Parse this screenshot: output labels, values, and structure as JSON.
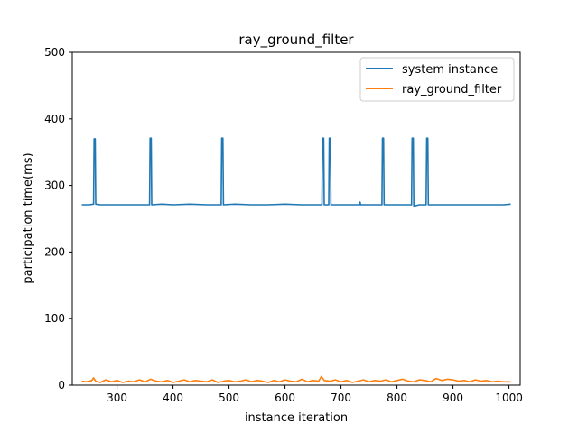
{
  "chart_data": {
    "type": "line",
    "title": "ray_ground_filter",
    "xlabel": "instance iteration",
    "ylabel": "participation time(ms)",
    "xlim": [
      220,
      1020
    ],
    "ylim": [
      0,
      500
    ],
    "xticks": [
      300,
      400,
      500,
      600,
      700,
      800,
      900,
      1000
    ],
    "yticks": [
      0,
      100,
      200,
      300,
      400,
      500
    ],
    "grid": false,
    "legend_position": "top-right",
    "series": [
      {
        "name": "system instance",
        "color": "#1f77b4",
        "x": [
          237,
          240,
          250,
          258,
          259,
          261,
          262,
          270,
          300,
          330,
          358,
          359,
          361,
          362,
          380,
          400,
          430,
          460,
          486,
          487,
          489,
          490,
          510,
          540,
          570,
          600,
          630,
          660,
          666,
          667,
          669,
          670,
          678,
          679,
          681,
          682,
          700,
          733,
          734,
          735,
          750,
          773,
          774,
          776,
          777,
          790,
          810,
          826,
          827,
          829,
          830,
          840,
          852,
          853,
          855,
          856,
          870,
          900,
          930,
          960,
          990,
          1003
        ],
        "y": [
          271,
          271,
          271,
          272,
          370,
          370,
          272,
          271,
          271,
          271,
          271,
          371,
          371,
          271,
          272,
          271,
          272,
          271,
          271,
          371,
          371,
          271,
          272,
          271,
          271,
          272,
          271,
          271,
          271,
          371,
          371,
          271,
          271,
          371,
          371,
          271,
          271,
          271,
          275,
          271,
          271,
          271,
          371,
          371,
          271,
          271,
          271,
          271,
          371,
          371,
          269,
          271,
          271,
          371,
          371,
          271,
          271,
          271,
          271,
          271,
          271,
          272
        ]
      },
      {
        "name": "ray_ground_filter",
        "color": "#ff7f0e",
        "x": [
          237,
          245,
          255,
          258,
          262,
          270,
          280,
          290,
          300,
          310,
          320,
          330,
          340,
          350,
          360,
          370,
          380,
          390,
          400,
          410,
          420,
          430,
          440,
          450,
          460,
          470,
          480,
          490,
          500,
          510,
          520,
          530,
          540,
          550,
          560,
          570,
          580,
          590,
          600,
          610,
          620,
          630,
          640,
          650,
          660,
          665,
          670,
          680,
          690,
          700,
          710,
          720,
          730,
          740,
          750,
          760,
          770,
          780,
          790,
          800,
          810,
          820,
          830,
          840,
          850,
          860,
          870,
          880,
          890,
          900,
          910,
          920,
          930,
          940,
          950,
          960,
          970,
          980,
          990,
          1003
        ],
        "y": [
          6,
          5,
          7,
          11,
          6,
          4,
          8,
          5,
          7,
          4,
          6,
          5,
          8,
          5,
          9,
          6,
          5,
          7,
          4,
          6,
          8,
          5,
          7,
          6,
          5,
          8,
          4,
          6,
          7,
          5,
          6,
          8,
          5,
          7,
          6,
          4,
          7,
          5,
          8,
          6,
          5,
          9,
          5,
          7,
          6,
          13,
          7,
          6,
          8,
          5,
          7,
          4,
          6,
          8,
          5,
          7,
          6,
          8,
          5,
          7,
          9,
          6,
          5,
          8,
          7,
          5,
          10,
          7,
          9,
          8,
          6,
          7,
          5,
          8,
          6,
          7,
          5,
          6,
          5,
          5
        ]
      }
    ]
  }
}
